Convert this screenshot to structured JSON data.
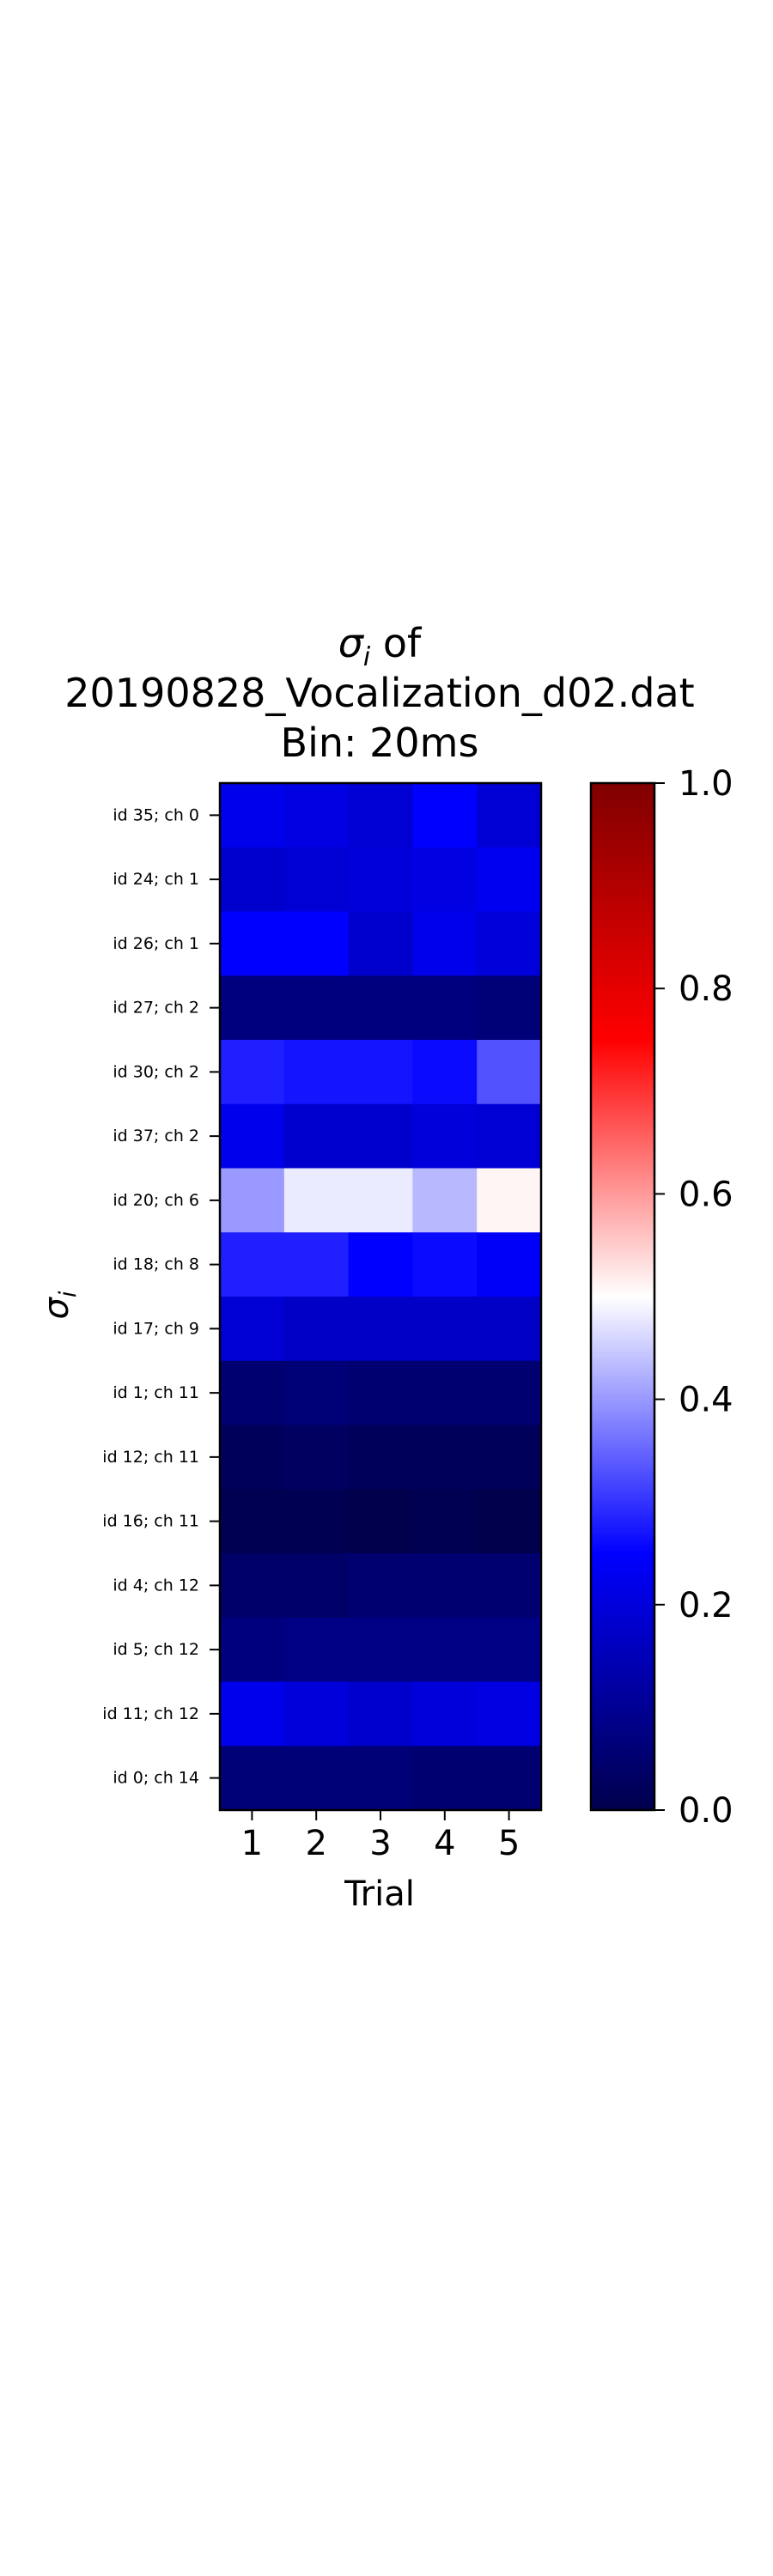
{
  "chart_data": {
    "type": "heatmap",
    "title_lines": [
      "σ",
      "i",
      " of",
      "20190828_Vocalization_d02.dat",
      "Bin: 20ms"
    ],
    "xlabel": "Trial",
    "ylabel_main": "σ",
    "ylabel_sub": "i",
    "x_categories": [
      "1",
      "2",
      "3",
      "4",
      "5"
    ],
    "y_categories": [
      "id 35; ch 0",
      "id 24; ch 1",
      "id 26; ch 1",
      "id 27; ch 2",
      "id 30; ch 2",
      "id 37; ch 2",
      "id 20; ch 6",
      "id 18; ch 8",
      "id 17; ch 9",
      "id 1; ch 11",
      "id 12; ch 11",
      "id 16; ch 11",
      "id 4; ch 12",
      "id 5; ch 12",
      "id 11; ch 12",
      "id 0; ch 14"
    ],
    "values": [
      [
        0.22,
        0.21,
        0.19,
        0.25,
        0.19
      ],
      [
        0.18,
        0.19,
        0.2,
        0.21,
        0.23
      ],
      [
        0.25,
        0.25,
        0.18,
        0.22,
        0.2
      ],
      [
        0.07,
        0.07,
        0.07,
        0.07,
        0.06
      ],
      [
        0.28,
        0.27,
        0.27,
        0.26,
        0.33
      ],
      [
        0.22,
        0.18,
        0.18,
        0.2,
        0.19
      ],
      [
        0.4,
        0.48,
        0.48,
        0.43,
        0.51
      ],
      [
        0.28,
        0.28,
        0.25,
        0.26,
        0.24
      ],
      [
        0.19,
        0.17,
        0.17,
        0.17,
        0.17
      ],
      [
        0.05,
        0.06,
        0.05,
        0.05,
        0.05
      ],
      [
        0.02,
        0.03,
        0.02,
        0.02,
        0.02
      ],
      [
        0.01,
        0.01,
        0.0,
        0.01,
        0.0
      ],
      [
        0.04,
        0.04,
        0.05,
        0.05,
        0.05
      ],
      [
        0.07,
        0.08,
        0.08,
        0.08,
        0.08
      ],
      [
        0.22,
        0.2,
        0.18,
        0.2,
        0.21
      ],
      [
        0.06,
        0.06,
        0.06,
        0.05,
        0.05
      ]
    ],
    "colormap": "seismic",
    "colormap_stops": [
      "#00004c",
      "#0000ff",
      "#ffffff",
      "#ff0000",
      "#7f0000"
    ],
    "vmin": 0.0,
    "vmax": 1.0,
    "colorbar_ticks": [
      "0.0",
      "0.2",
      "0.4",
      "0.6",
      "0.8",
      "1.0"
    ]
  }
}
